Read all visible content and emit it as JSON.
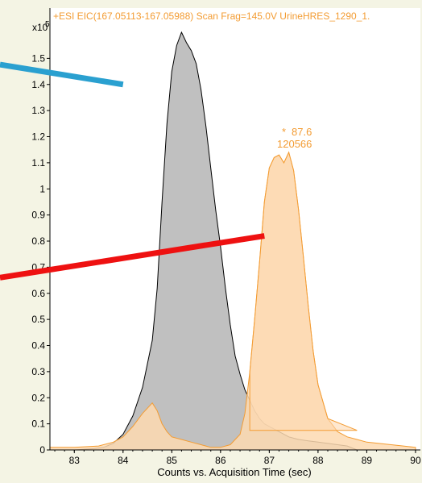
{
  "chart_data": {
    "type": "area",
    "title": "+ESI EIC(167.05113-167.05988) Scan Frag=145.0V UrineHRES_1290_1.",
    "xlabel": "Counts vs. Acquisition Time (sec)",
    "ylabel": "",
    "y_multiplier": "x10",
    "y_multiplier_exp": "5",
    "xlim": [
      82.5,
      90.1
    ],
    "ylim": [
      0,
      1.6
    ],
    "x_ticks": [
      83,
      84,
      85,
      86,
      87,
      88,
      89,
      90
    ],
    "y_ticks": [
      0,
      0.1,
      0.2,
      0.3,
      0.4,
      0.5,
      0.6,
      0.7,
      0.8,
      0.9,
      1,
      1.1,
      1.2,
      1.3,
      1.4,
      1.5
    ],
    "grid": false,
    "colors": {
      "gray_fill": "#c0c0c0",
      "gray_line": "#000000",
      "orange_fill": "#fdd9b0",
      "orange_line": "#f39c33",
      "title_color": "#f39c33",
      "blue_mark": "#2aa0d0",
      "red_mark": "#ee1111",
      "axis_bg": "#f4f4e4"
    },
    "series": [
      {
        "style": "gray",
        "x": [
          82.5,
          83.0,
          83.4,
          83.6,
          83.8,
          84.0,
          84.2,
          84.4,
          84.6,
          84.7,
          84.8,
          84.9,
          85.0,
          85.1,
          85.2,
          85.3,
          85.4,
          85.5,
          85.6,
          85.7,
          85.8,
          85.9,
          86.0,
          86.1,
          86.2,
          86.3,
          86.4,
          86.5,
          86.6,
          86.7,
          86.8,
          86.9,
          87.0,
          87.2,
          87.4,
          87.6,
          87.8,
          88.0,
          88.2,
          88.4,
          88.6,
          88.8
        ],
        "values": [
          0.0,
          0.0,
          0.005,
          0.01,
          0.025,
          0.06,
          0.13,
          0.24,
          0.42,
          0.62,
          0.95,
          1.25,
          1.45,
          1.55,
          1.6,
          1.56,
          1.53,
          1.48,
          1.38,
          1.24,
          1.08,
          0.92,
          0.78,
          0.62,
          0.48,
          0.36,
          0.29,
          0.23,
          0.19,
          0.15,
          0.12,
          0.1,
          0.09,
          0.07,
          0.05,
          0.04,
          0.035,
          0.03,
          0.025,
          0.02,
          0.015,
          0.0
        ]
      },
      {
        "style": "orange",
        "x": [
          82.5,
          83.0,
          83.5,
          83.8,
          84.0,
          84.2,
          84.4,
          84.5,
          84.6,
          84.7,
          84.8,
          84.9,
          85.0,
          85.2,
          85.4,
          85.6,
          85.8,
          86.0,
          86.2,
          86.4,
          86.5,
          86.6,
          86.7,
          86.8,
          86.9,
          87.0,
          87.1,
          87.2,
          87.3,
          87.4,
          87.5,
          87.6,
          87.7,
          87.8,
          87.9,
          88.0,
          88.2,
          88.4,
          88.6,
          88.8,
          89.0,
          89.5,
          90.0
        ],
        "values": [
          0.01,
          0.01,
          0.015,
          0.03,
          0.05,
          0.09,
          0.14,
          0.16,
          0.18,
          0.15,
          0.1,
          0.07,
          0.05,
          0.04,
          0.03,
          0.02,
          0.01,
          0.01,
          0.02,
          0.06,
          0.14,
          0.3,
          0.5,
          0.72,
          0.95,
          1.08,
          1.12,
          1.13,
          1.1,
          1.14,
          1.07,
          0.92,
          0.74,
          0.55,
          0.38,
          0.25,
          0.12,
          0.07,
          0.05,
          0.04,
          0.03,
          0.02,
          0.01
        ]
      }
    ],
    "shaded_region": {
      "x_start": 86.6,
      "x_end": 87.5,
      "baseline": 0.075
    },
    "annotation": {
      "x": 87.3,
      "y": 1.13,
      "line1": "87.6",
      "line2": "120566",
      "marker": "*"
    },
    "overlay_lines": [
      {
        "color": "blue",
        "x": [
          82.5,
          84.0
        ],
        "y": [
          1.47,
          1.4
        ]
      },
      {
        "color": "red",
        "x": [
          82.5,
          86.9
        ],
        "y": [
          0.66,
          0.82
        ]
      }
    ]
  }
}
